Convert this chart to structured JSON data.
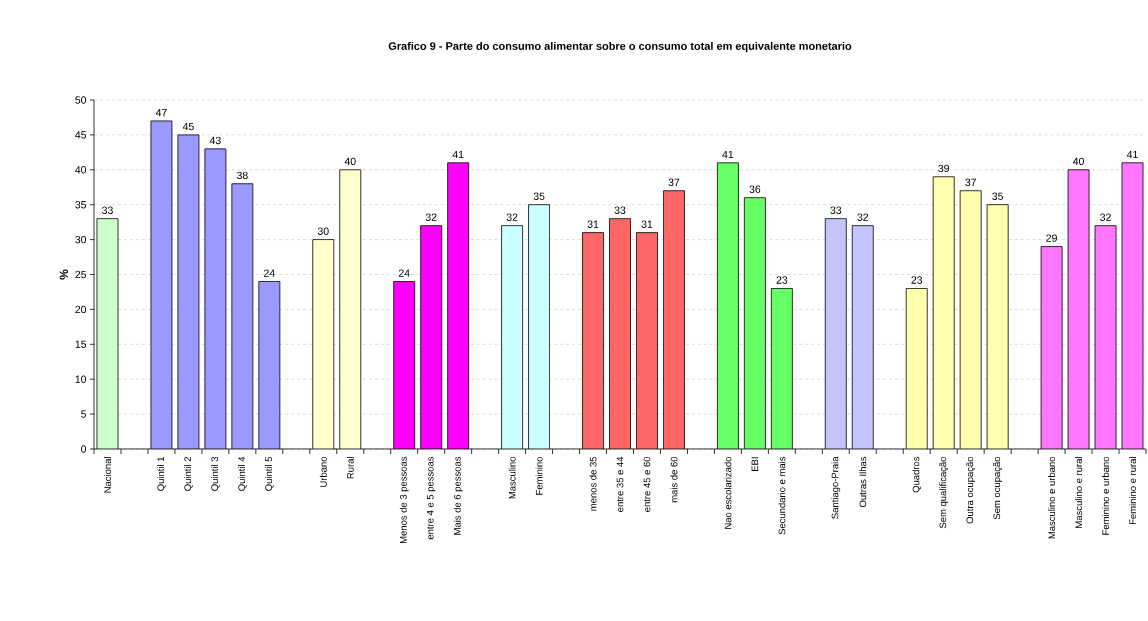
{
  "chart_data": {
    "type": "bar",
    "title": "Grafico 9 - Parte do consumo alimentar sobre o consumo total em equivalente monetario",
    "ylabel": "%",
    "categories": [
      "Nacional",
      null,
      "Quintil 1",
      "Quintil 2",
      "Quintil 3",
      "Quintil 4",
      "Quintil 5",
      null,
      "Urbano",
      "Rural",
      null,
      "Menos de 3 pessoas",
      "entre 4 e 5 pessoas",
      "Mais de 6 pessoas",
      null,
      "Masculino",
      "Feminino",
      null,
      "menos de 35",
      "entre 35 e 44",
      "entre 45 e 60",
      "mais de 60",
      null,
      "Nao escolarizado",
      "EBI",
      "Secundario e mais",
      null,
      "Santiago-Praia",
      "Outras Ilhas",
      null,
      "Quadros",
      "Sem qualificação",
      "Outra ocupação",
      "Sem ocupação",
      null,
      "Masculino e urbano",
      "Masculino e rural",
      "Feminino e urbano",
      "Feminino e rural"
    ],
    "values": [
      33,
      null,
      47,
      45,
      43,
      38,
      24,
      null,
      30,
      40,
      null,
      24,
      32,
      41,
      null,
      32,
      35,
      null,
      31,
      33,
      31,
      37,
      null,
      41,
      36,
      23,
      null,
      33,
      32,
      null,
      23,
      39,
      37,
      35,
      null,
      29,
      40,
      32,
      41
    ],
    "colors": [
      "#ccffcc",
      null,
      "#9999ff",
      "#9999ff",
      "#9999ff",
      "#9999ff",
      "#9999ff",
      null,
      "#ffffcc",
      "#ffffcc",
      null,
      "#ff00ff",
      "#ff00ff",
      "#ff00ff",
      null,
      "#ccffff",
      "#ccffff",
      null,
      "#ff6666",
      "#ff6666",
      "#ff6666",
      "#ff6666",
      null,
      "#66ff66",
      "#66ff66",
      "#66ff66",
      null,
      "#c4c4ff",
      "#c4c4ff",
      null,
      "#ffffb0",
      "#ffffb0",
      "#ffffb0",
      "#ffffb0",
      null,
      "#ff77ff",
      "#ff77ff",
      "#ff77ff",
      "#ff77ff"
    ],
    "ylim": [
      0,
      50
    ],
    "yticks": [
      0,
      5,
      10,
      15,
      20,
      25,
      30,
      35,
      40,
      45,
      50
    ],
    "grid": "y",
    "data_labels": true
  }
}
